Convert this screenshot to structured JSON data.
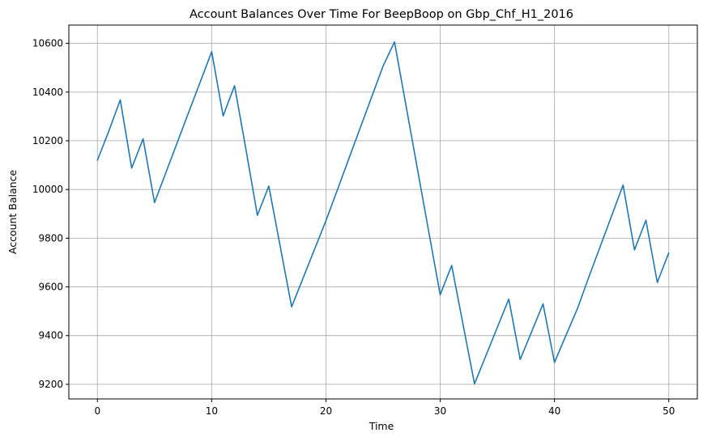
{
  "chart_data": {
    "type": "line",
    "title": "Account Balances Over Time For BeepBoop on Gbp_Chf_H1_2016",
    "xlabel": "Time",
    "ylabel": "Account Balance",
    "xlim": [
      -2.5,
      52.5
    ],
    "ylim": [
      9140,
      10675
    ],
    "xticks": [
      0,
      10,
      20,
      30,
      40,
      50
    ],
    "yticks": [
      9200,
      9400,
      9600,
      9800,
      10000,
      10200,
      10400,
      10600
    ],
    "grid": true,
    "line_color": "#1f77b4",
    "series": [
      {
        "x": [
          0,
          1,
          2,
          3,
          4,
          5,
          6,
          7,
          8,
          9,
          10,
          11,
          12,
          13,
          14,
          15,
          16,
          17,
          18,
          19,
          20,
          21,
          22,
          23,
          24,
          25,
          26,
          27,
          28,
          29,
          30,
          31,
          32,
          33,
          34,
          35,
          36,
          37,
          38,
          39,
          40,
          41,
          42,
          43,
          44,
          45,
          46,
          47,
          48,
          49,
          50
        ],
        "values": [
          10120,
          10240,
          10368,
          10088,
          10208,
          9946,
          10070,
          10194,
          10318,
          10442,
          10566,
          10302,
          10426,
          10164,
          9894,
          10014,
          9766,
          9518,
          9636,
          9754,
          9872,
          9999,
          10126,
          10253,
          10380,
          10507,
          10606,
          10346,
          10086,
          9826,
          9568,
          9688,
          9444,
          9202,
          9318,
          9434,
          9550,
          9302,
          9416,
          9530,
          9290,
          9400,
          9510,
          9640,
          9766,
          9892,
          10018,
          9752,
          9874,
          9618,
          9740
        ]
      }
    ]
  }
}
